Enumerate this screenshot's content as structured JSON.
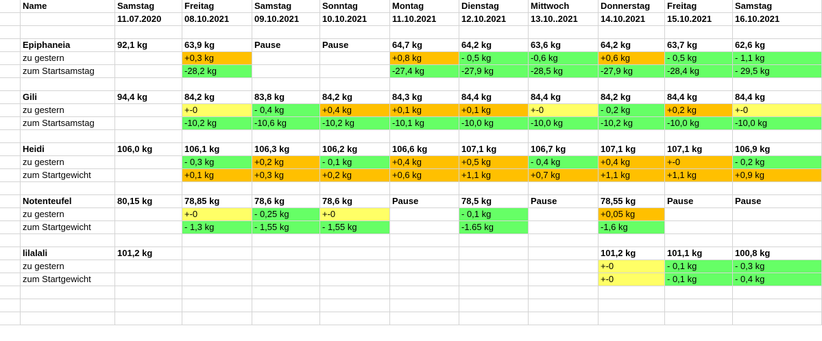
{
  "colors": {
    "orange": "#ffc000",
    "green": "#66ff66",
    "yellow": "#ffff66",
    "gridline": "#d4d4d4"
  },
  "header": {
    "name_label": "Name",
    "days": [
      {
        "weekday": "Samstag",
        "date": "11.07.2020"
      },
      {
        "weekday": "Freitag",
        "date": "08.10.2021"
      },
      {
        "weekday": "Samstag",
        "date": "09.10.2021"
      },
      {
        "weekday": "Sonntag",
        "date": "10.10.2021"
      },
      {
        "weekday": "Montag",
        "date": "11.10.2021"
      },
      {
        "weekday": "Dienstag",
        "date": "12.10.2021"
      },
      {
        "weekday": "Mittwoch",
        "date": "13.10..2021"
      },
      {
        "weekday": "Donnerstag",
        "date": "14.10.2021"
      },
      {
        "weekday": "Freitag",
        "date": "15.10.2021"
      },
      {
        "weekday": "Samstag",
        "date": "16.10.2021"
      }
    ]
  },
  "persons": [
    {
      "name": "Epiphaneia",
      "weights": [
        "92,1 kg",
        "63,9 kg",
        "Pause",
        "Pause",
        "64,7 kg",
        "64,2 kg",
        "63,6 kg",
        "64,2 kg",
        "63,7 kg",
        "62,6 kg"
      ],
      "label1": "zu gestern",
      "row1": [
        {
          "v": "",
          "c": ""
        },
        {
          "v": "+0,3 kg",
          "c": "orange"
        },
        {
          "v": "",
          "c": ""
        },
        {
          "v": "",
          "c": ""
        },
        {
          "v": "+0,8 kg",
          "c": "orange"
        },
        {
          "v": "- 0,5 kg",
          "c": "green"
        },
        {
          "v": "-0,6 kg",
          "c": "green"
        },
        {
          "v": "+0,6 kg",
          "c": "orange"
        },
        {
          "v": "- 0,5 kg",
          "c": "green"
        },
        {
          "v": "- 1,1 kg",
          "c": "green"
        }
      ],
      "label2": "zum Startsamstag",
      "row2": [
        {
          "v": "",
          "c": ""
        },
        {
          "v": "-28,2 kg",
          "c": "green"
        },
        {
          "v": "",
          "c": ""
        },
        {
          "v": "",
          "c": ""
        },
        {
          "v": "-27,4 kg",
          "c": "green"
        },
        {
          "v": "-27,9 kg",
          "c": "green"
        },
        {
          "v": "-28,5 kg",
          "c": "green"
        },
        {
          "v": "-27,9 kg",
          "c": "green"
        },
        {
          "v": "-28,4 kg",
          "c": "green"
        },
        {
          "v": "- 29,5 kg",
          "c": "green"
        }
      ]
    },
    {
      "name": "Gili",
      "weights": [
        "94,4 kg",
        "84,2 kg",
        "83,8 kg",
        "84,2 kg",
        "84,3 kg",
        "84,4 kg",
        "84,4 kg",
        "84,2 kg",
        "84,4 kg",
        "84,4 kg"
      ],
      "label1": "zu gestern",
      "row1": [
        {
          "v": "",
          "c": ""
        },
        {
          "v": "+-0",
          "c": "yellow"
        },
        {
          "v": "- 0,4 kg",
          "c": "green"
        },
        {
          "v": "+0,4 kg",
          "c": "orange"
        },
        {
          "v": "+0,1 kg",
          "c": "orange"
        },
        {
          "v": "+0,1 kg",
          "c": "orange"
        },
        {
          "v": "+-0",
          "c": "yellow"
        },
        {
          "v": "- 0,2 kg",
          "c": "green"
        },
        {
          "v": "+0,2 kg",
          "c": "orange"
        },
        {
          "v": "+-0",
          "c": "yellow"
        }
      ],
      "label2": "zum Startsamstag",
      "row2": [
        {
          "v": "",
          "c": ""
        },
        {
          "v": "-10,2 kg",
          "c": "green"
        },
        {
          "v": "-10,6 kg",
          "c": "green"
        },
        {
          "v": "-10,2 kg",
          "c": "green"
        },
        {
          "v": "-10,1 kg",
          "c": "green"
        },
        {
          "v": "-10,0 kg",
          "c": "green"
        },
        {
          "v": "-10,0 kg",
          "c": "green"
        },
        {
          "v": "-10,2 kg",
          "c": "green"
        },
        {
          "v": "-10,0 kg",
          "c": "green"
        },
        {
          "v": "-10,0 kg",
          "c": "green"
        }
      ]
    },
    {
      "name": "Heidi",
      "weights": [
        "106,0 kg",
        "106,1 kg",
        "106,3 kg",
        "106,2 kg",
        "106,6 kg",
        "107,1 kg",
        "106,7 kg",
        "107,1 kg",
        "107,1 kg",
        "106,9 kg"
      ],
      "label1": "zu gestern",
      "row1": [
        {
          "v": "",
          "c": ""
        },
        {
          "v": "- 0,3 kg",
          "c": "green"
        },
        {
          "v": "+0,2 kg",
          "c": "orange"
        },
        {
          "v": "- 0,1 kg",
          "c": "green"
        },
        {
          "v": "+0,4 kg",
          "c": "orange"
        },
        {
          "v": "+0,5 kg",
          "c": "orange"
        },
        {
          "v": "- 0,4 kg",
          "c": "green"
        },
        {
          "v": "+0,4 kg",
          "c": "orange"
        },
        {
          "v": "+-0",
          "c": "orange"
        },
        {
          "v": "- 0,2 kg",
          "c": "green"
        }
      ],
      "label2": "zum Startgewicht",
      "row2": [
        {
          "v": "",
          "c": ""
        },
        {
          "v": "+0,1 kg",
          "c": "orange"
        },
        {
          "v": "+0,3 kg",
          "c": "orange"
        },
        {
          "v": "+0,2 kg",
          "c": "orange"
        },
        {
          "v": "+0,6 kg",
          "c": "orange"
        },
        {
          "v": "+1,1 kg",
          "c": "orange"
        },
        {
          "v": "+0,7 kg",
          "c": "orange"
        },
        {
          "v": "+1,1 kg",
          "c": "orange"
        },
        {
          "v": "+1,1 kg",
          "c": "orange"
        },
        {
          "v": "+0,9 kg",
          "c": "orange"
        }
      ]
    },
    {
      "name": "Notenteufel",
      "weights": [
        "80,15 kg",
        "78,85 kg",
        "78,6 kg",
        "78,6 kg",
        "Pause",
        "78,5 kg",
        "Pause",
        "78,55 kg",
        "Pause",
        "Pause"
      ],
      "label1": "zu gestern",
      "row1": [
        {
          "v": "",
          "c": ""
        },
        {
          "v": "+-0",
          "c": "yellow"
        },
        {
          "v": "- 0,25 kg",
          "c": "green"
        },
        {
          "v": "+-0",
          "c": "yellow"
        },
        {
          "v": "",
          "c": ""
        },
        {
          "v": "- 0,1 kg",
          "c": "green"
        },
        {
          "v": "",
          "c": ""
        },
        {
          "v": "+0,05 kg",
          "c": "orange"
        },
        {
          "v": "",
          "c": ""
        },
        {
          "v": "",
          "c": ""
        }
      ],
      "label2": "zum Startgewicht",
      "row2": [
        {
          "v": "",
          "c": ""
        },
        {
          "v": "- 1,3 kg",
          "c": "green"
        },
        {
          "v": "- 1,55 kg",
          "c": "green"
        },
        {
          "v": "- 1,55 kg",
          "c": "green"
        },
        {
          "v": "",
          "c": ""
        },
        {
          "v": "-1.65 kg",
          "c": "green"
        },
        {
          "v": "",
          "c": ""
        },
        {
          "v": "-1,6 kg",
          "c": "green"
        },
        {
          "v": "",
          "c": ""
        },
        {
          "v": "",
          "c": ""
        }
      ]
    },
    {
      "name": "lilalali",
      "weights": [
        "101,2 kg",
        "",
        "",
        "",
        "",
        "",
        "",
        "101,2 kg",
        "101,1 kg",
        "100,8 kg"
      ],
      "label1": "zu gestern",
      "row1": [
        {
          "v": "",
          "c": ""
        },
        {
          "v": "",
          "c": ""
        },
        {
          "v": "",
          "c": ""
        },
        {
          "v": "",
          "c": ""
        },
        {
          "v": "",
          "c": ""
        },
        {
          "v": "",
          "c": ""
        },
        {
          "v": "",
          "c": ""
        },
        {
          "v": "+-0",
          "c": "yellow"
        },
        {
          "v": "- 0,1 kg",
          "c": "green"
        },
        {
          "v": "- 0,3 kg",
          "c": "green"
        }
      ],
      "label2": "zum Startgewicht",
      "row2": [
        {
          "v": "",
          "c": ""
        },
        {
          "v": "",
          "c": ""
        },
        {
          "v": "",
          "c": ""
        },
        {
          "v": "",
          "c": ""
        },
        {
          "v": "",
          "c": ""
        },
        {
          "v": "",
          "c": ""
        },
        {
          "v": "",
          "c": ""
        },
        {
          "v": "+-0",
          "c": "yellow"
        },
        {
          "v": "- 0,1 kg",
          "c": "green"
        },
        {
          "v": "- 0,4 kg",
          "c": "green"
        }
      ]
    }
  ]
}
